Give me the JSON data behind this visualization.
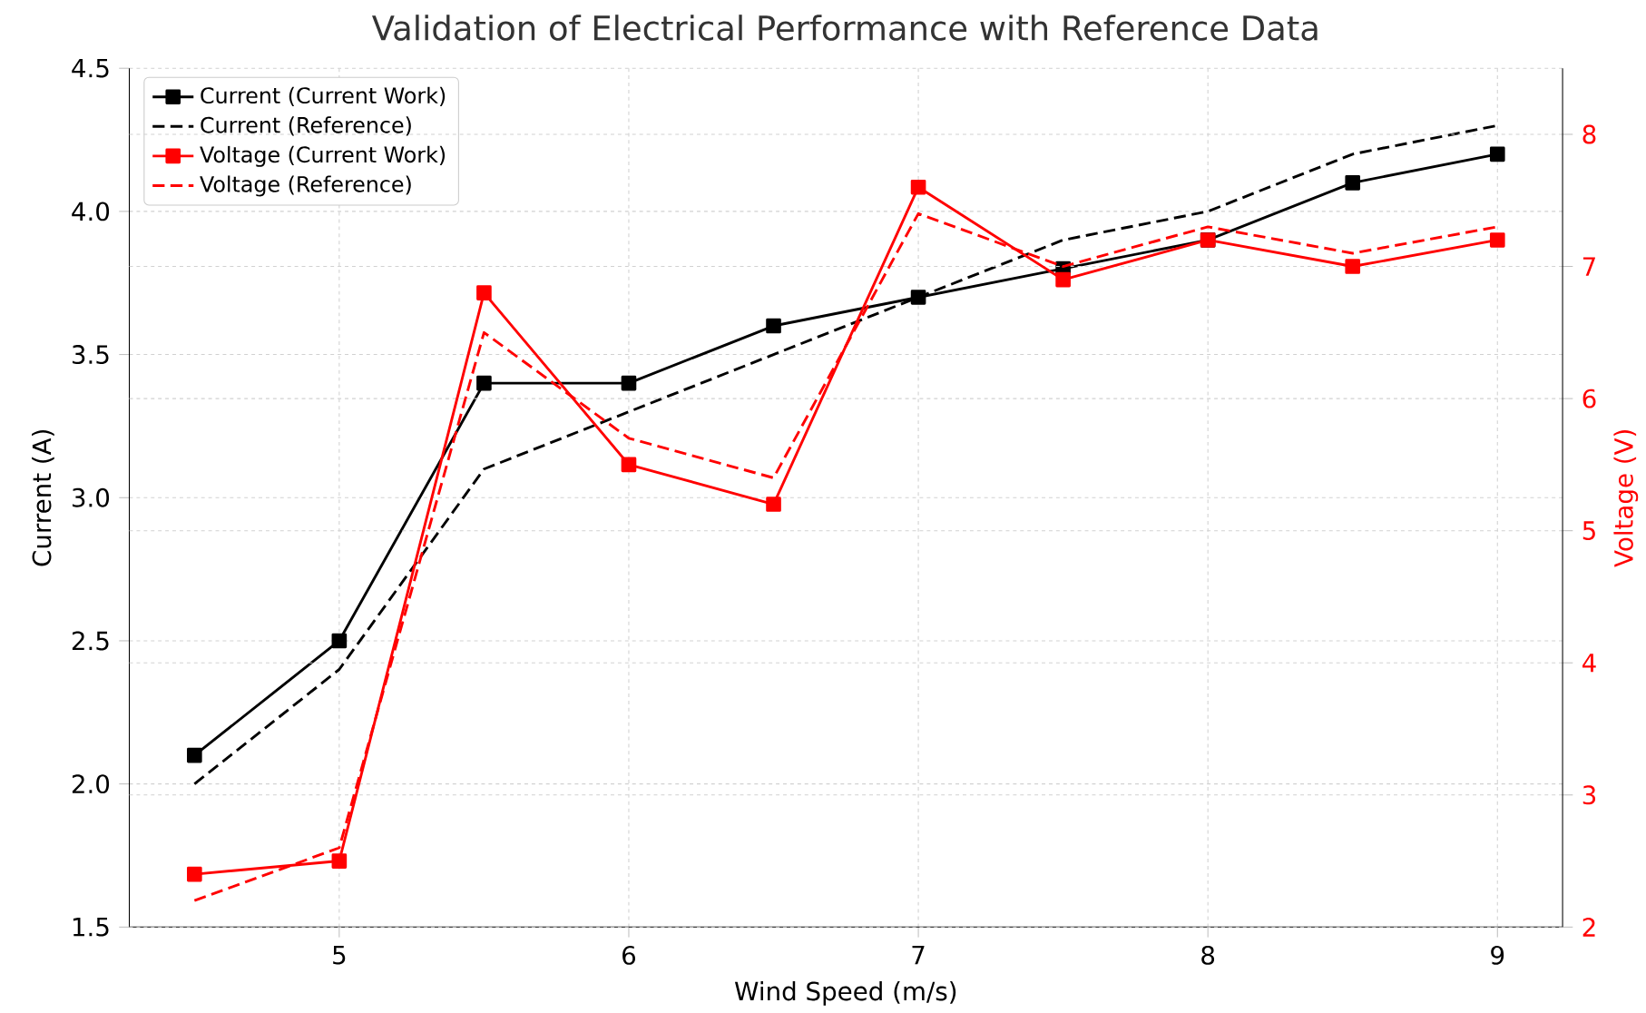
{
  "chart_data": {
    "type": "line",
    "title": "Validation of Electrical Performance with Reference Data",
    "xlabel": "Wind Speed (m/s)",
    "ylabel": "Current (A)",
    "y2label": "Voltage (V)",
    "x": [
      4.5,
      5,
      5.5,
      6,
      6.5,
      7,
      7.5,
      8,
      8.5,
      9
    ],
    "series": [
      {
        "name": "Current (Current Work)",
        "color": "#000000",
        "marker": "square",
        "line_style": "solid",
        "values": [
          2.1,
          2.5,
          3.4,
          3.4,
          3.6,
          3.7,
          3.8,
          3.9,
          4.1,
          4.2
        ]
      },
      {
        "name": "Current (Reference)",
        "color": "#000000",
        "marker": "none",
        "line_style": "dashed",
        "values": [
          2.0,
          2.4,
          3.1,
          3.3,
          3.5,
          3.7,
          3.9,
          4.0,
          4.2,
          4.3
        ]
      },
      {
        "name": "Voltage (Current Work)",
        "color": "#ff0000",
        "marker": "square",
        "line_style": "solid",
        "axis": "y2",
        "values": [
          2.4,
          2.5,
          6.8,
          5.5,
          5.2,
          7.6,
          6.9,
          7.2,
          7.0,
          7.2
        ]
      },
      {
        "name": "Voltage (Reference)",
        "color": "#ff0000",
        "marker": "none",
        "line_style": "dashed",
        "axis": "y2",
        "values": [
          2.2,
          2.6,
          6.5,
          5.7,
          5.4,
          7.4,
          7.0,
          7.3,
          7.1,
          7.3
        ]
      }
    ],
    "xlim": [
      4.275,
      9.225
    ],
    "xticks": [
      5,
      6,
      7,
      8,
      9
    ],
    "ylim": [
      1.5,
      4.5
    ],
    "yticks": [
      1.5,
      {
        "value": 2,
        "label": "2.0"
      },
      2.5,
      {
        "value": 3,
        "label": "3.0"
      },
      3.5,
      {
        "value": 4,
        "label": "4.0"
      },
      4.5
    ],
    "y2lim": [
      2,
      8.5
    ],
    "y2ticks": [
      2,
      3,
      4,
      5,
      6,
      7,
      8
    ],
    "grid": true,
    "legend": "top left"
  }
}
